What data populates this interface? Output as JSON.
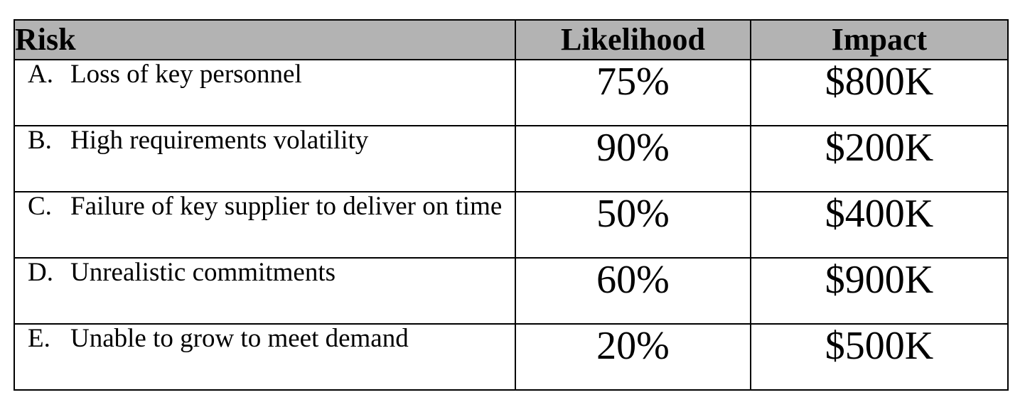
{
  "table": {
    "headers": {
      "risk": "Risk",
      "likelihood": "Likelihood",
      "impact": "Impact"
    },
    "rows": [
      {
        "letter": "A.",
        "risk": "Loss of key personnel",
        "likelihood": "75%",
        "impact": "$800K"
      },
      {
        "letter": "B.",
        "risk": "High requirements volatility",
        "likelihood": "90%",
        "impact": "$200K"
      },
      {
        "letter": "C.",
        "risk": "Failure of key supplier to deliver on time",
        "likelihood": "50%",
        "impact": "$400K"
      },
      {
        "letter": "D.",
        "risk": "Unrealistic commitments",
        "likelihood": "60%",
        "impact": "$900K"
      },
      {
        "letter": "E.",
        "risk": "Unable to grow to meet demand",
        "likelihood": "20%",
        "impact": "$500K"
      }
    ]
  }
}
